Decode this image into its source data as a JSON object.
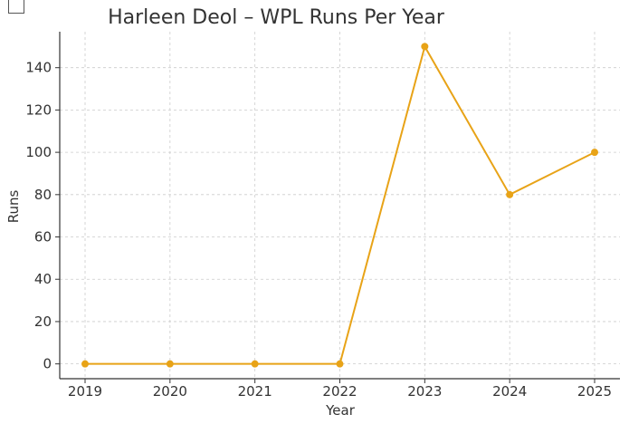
{
  "chart_data": {
    "type": "line",
    "title": "Harleen Deol – WPL Runs Per Year",
    "xlabel": "Year",
    "ylabel": "Runs",
    "categories": [
      "2019",
      "2020",
      "2021",
      "2022",
      "2023",
      "2024",
      "2025"
    ],
    "series": [
      {
        "values": [
          0,
          0,
          0,
          0,
          150,
          80,
          100
        ],
        "color": "#e8a317"
      }
    ],
    "yticks": [
      0,
      20,
      40,
      60,
      80,
      100,
      120,
      140
    ],
    "ylim": [
      -7,
      157
    ],
    "grid": true,
    "marker": "circle"
  }
}
